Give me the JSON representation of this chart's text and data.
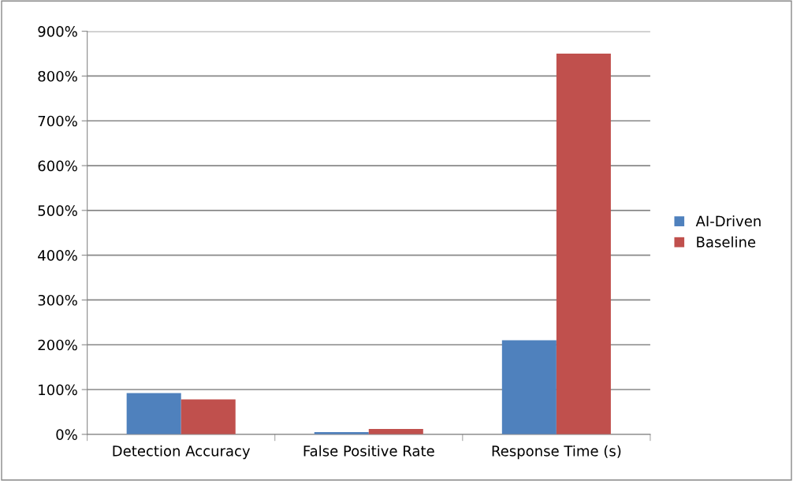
{
  "chart_data": {
    "type": "bar",
    "categories": [
      "Detection Accuracy",
      "False Positive Rate",
      "Response Time (s)"
    ],
    "series": [
      {
        "name": "AI-Driven",
        "color": "#4f81bd",
        "values": [
          92,
          5,
          210
        ]
      },
      {
        "name": "Baseline",
        "color": "#c0504d",
        "values": [
          78,
          12,
          850
        ]
      }
    ],
    "ylim": [
      0,
      900
    ],
    "yticks": [
      {
        "value": 0,
        "label": "0%"
      },
      {
        "value": 100,
        "label": "100%"
      },
      {
        "value": 200,
        "label": "200%"
      },
      {
        "value": 300,
        "label": "300%"
      },
      {
        "value": 400,
        "label": "400%"
      },
      {
        "value": 500,
        "label": "500%"
      },
      {
        "value": 600,
        "label": "600%"
      },
      {
        "value": 700,
        "label": "700%"
      },
      {
        "value": 800,
        "label": "800%"
      },
      {
        "value": 900,
        "label": "900%"
      }
    ],
    "grid": "y",
    "legend": "right"
  }
}
